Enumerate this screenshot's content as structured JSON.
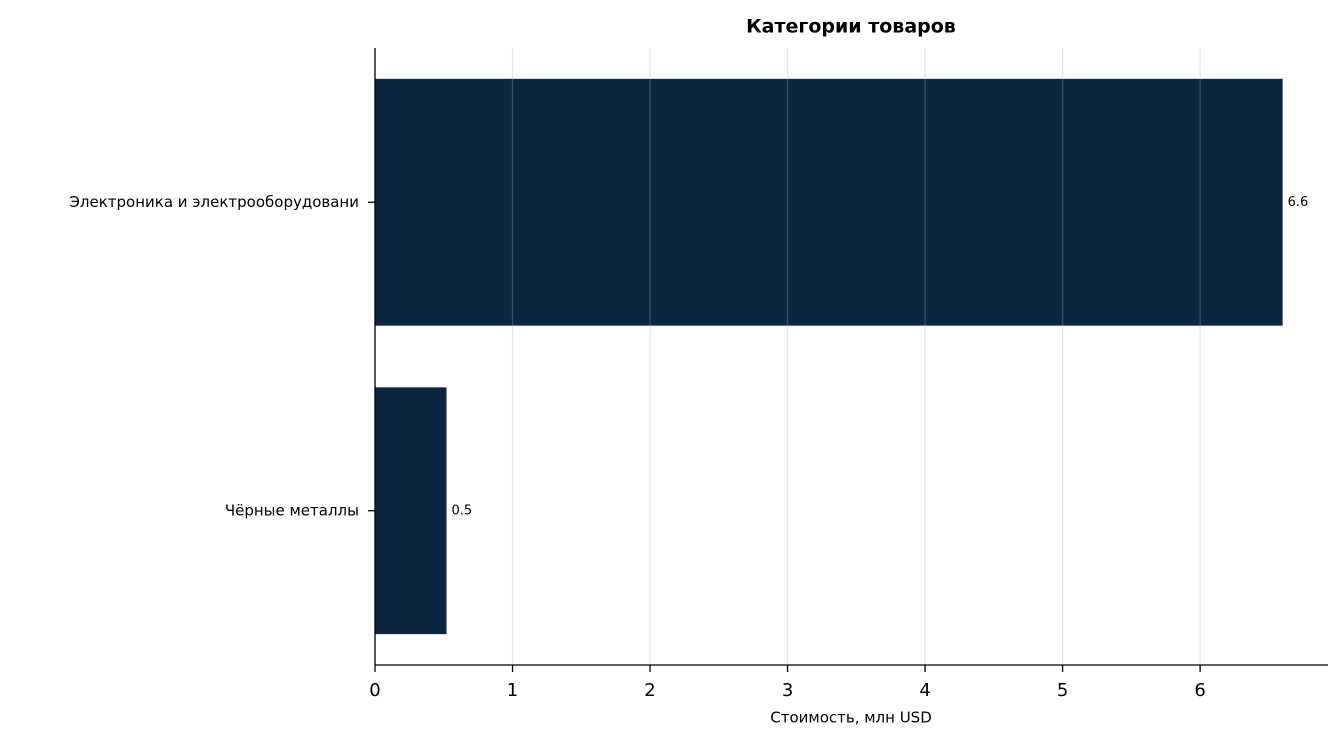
{
  "chart_data": {
    "type": "barh",
    "title": "Категории товаров",
    "xlabel": "Стоимость, млн USD",
    "categories": [
      "Электроника и электрооборудовани",
      "Чёрные металлы"
    ],
    "values": [
      6.6,
      0.52
    ],
    "value_labels": [
      "6.6",
      "0.5"
    ],
    "color": "#0c2540",
    "xlim": [
      0,
      6.93
    ],
    "xticks": [
      0,
      1,
      2,
      3,
      4,
      5,
      6
    ],
    "grid": true
  }
}
